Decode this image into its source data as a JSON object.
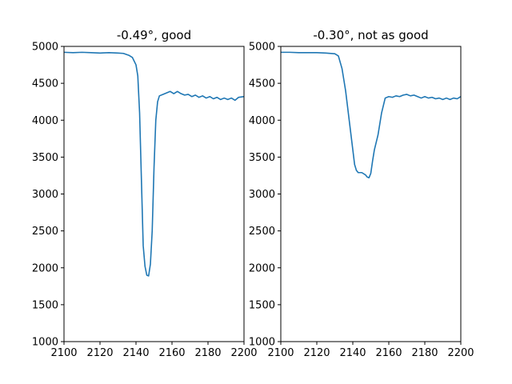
{
  "chart_data": [
    {
      "type": "line",
      "title": "-0.49°, good",
      "xlabel": "",
      "ylabel": "",
      "xlim": [
        2100,
        2200
      ],
      "ylim": [
        1000,
        5000
      ],
      "xticks": [
        2100,
        2120,
        2140,
        2160,
        2180,
        2200
      ],
      "yticks": [
        1000,
        1500,
        2000,
        2500,
        3000,
        3500,
        4000,
        4500,
        5000
      ],
      "grid": false,
      "color": "#1f77b4",
      "series": [
        {
          "x": [
            2100,
            2105,
            2110,
            2115,
            2120,
            2125,
            2130,
            2133,
            2136,
            2138,
            2140,
            2141,
            2142,
            2143,
            2144,
            2145,
            2146,
            2147,
            2148,
            2149,
            2150,
            2151,
            2152,
            2153,
            2155,
            2157,
            2159,
            2161,
            2163,
            2165,
            2167,
            2169,
            2171,
            2173,
            2175,
            2177,
            2179,
            2181,
            2183,
            2185,
            2187,
            2189,
            2191,
            2193,
            2195,
            2197,
            2200
          ],
          "y": [
            4920,
            4915,
            4920,
            4915,
            4910,
            4915,
            4910,
            4905,
            4880,
            4850,
            4750,
            4600,
            4100,
            3200,
            2300,
            2020,
            1900,
            1890,
            2050,
            2500,
            3350,
            4000,
            4250,
            4330,
            4350,
            4370,
            4390,
            4360,
            4390,
            4360,
            4340,
            4350,
            4320,
            4340,
            4310,
            4330,
            4300,
            4320,
            4290,
            4310,
            4280,
            4300,
            4280,
            4300,
            4270,
            4310,
            4320
          ]
        }
      ]
    },
    {
      "type": "line",
      "title": "-0.30°, not as good",
      "xlabel": "",
      "ylabel": "",
      "xlim": [
        2100,
        2200
      ],
      "ylim": [
        1000,
        5000
      ],
      "xticks": [
        2100,
        2120,
        2140,
        2160,
        2180,
        2200
      ],
      "yticks": [
        1000,
        1500,
        2000,
        2500,
        3000,
        3500,
        4000,
        4500,
        5000
      ],
      "grid": false,
      "color": "#1f77b4",
      "series": [
        {
          "x": [
            2100,
            2105,
            2110,
            2115,
            2120,
            2125,
            2130,
            2132,
            2134,
            2136,
            2138,
            2140,
            2141,
            2142,
            2143,
            2145,
            2147,
            2148,
            2149,
            2150,
            2151,
            2152,
            2154,
            2156,
            2158,
            2160,
            2162,
            2164,
            2166,
            2168,
            2170,
            2172,
            2174,
            2176,
            2178,
            2180,
            2182,
            2184,
            2186,
            2188,
            2190,
            2192,
            2194,
            2196,
            2198,
            2200
          ],
          "y": [
            4920,
            4920,
            4915,
            4915,
            4915,
            4910,
            4900,
            4870,
            4700,
            4400,
            4000,
            3600,
            3400,
            3320,
            3290,
            3290,
            3260,
            3230,
            3220,
            3280,
            3450,
            3600,
            3800,
            4100,
            4300,
            4320,
            4310,
            4330,
            4320,
            4340,
            4350,
            4330,
            4340,
            4320,
            4300,
            4320,
            4300,
            4310,
            4290,
            4300,
            4280,
            4300,
            4280,
            4300,
            4290,
            4320
          ]
        }
      ]
    }
  ]
}
